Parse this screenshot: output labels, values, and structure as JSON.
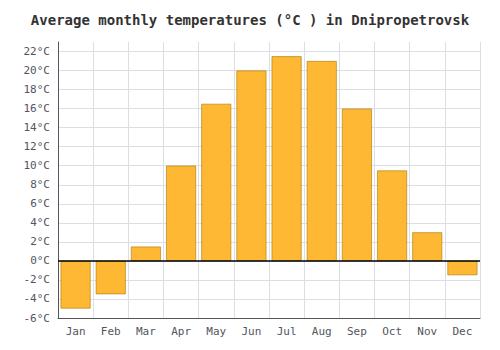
{
  "chart_data": {
    "type": "bar",
    "title": "Average monthly temperatures (°C ) in Dnipropetrovsk",
    "categories": [
      "Jan",
      "Feb",
      "Mar",
      "Apr",
      "May",
      "Jun",
      "Jul",
      "Aug",
      "Sep",
      "Oct",
      "Nov",
      "Dec"
    ],
    "values": [
      -5,
      -3.5,
      1.5,
      10,
      16.5,
      20,
      21.5,
      21,
      16,
      9.5,
      3,
      -1.5
    ],
    "color": "#FFB833",
    "ylim": [
      -6,
      23
    ],
    "yticks": [
      {
        "value": -6,
        "label": "-6°C"
      },
      {
        "value": -4,
        "label": "-4°C"
      },
      {
        "value": -2,
        "label": "-2°C"
      },
      {
        "value": 0,
        "label": "0°C"
      },
      {
        "value": 2,
        "label": "2°C"
      },
      {
        "value": 4,
        "label": "4°C"
      },
      {
        "value": 6,
        "label": "6°C"
      },
      {
        "value": 8,
        "label": "8°C"
      },
      {
        "value": 10,
        "label": "10°C"
      },
      {
        "value": 12,
        "label": "12°C"
      },
      {
        "value": 14,
        "label": "14°C"
      },
      {
        "value": 16,
        "label": "16°C"
      },
      {
        "value": 18,
        "label": "18°C"
      },
      {
        "value": 20,
        "label": "20°C"
      },
      {
        "value": 22,
        "label": "22°C"
      }
    ],
    "grid": true
  }
}
